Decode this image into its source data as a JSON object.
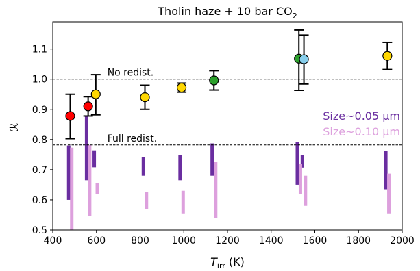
{
  "chart_data": {
    "type": "scatter",
    "title": "Tholin haze + 10 bar CO",
    "title_subscript": "2",
    "xlabel": {
      "main": "T",
      "sub": "irr",
      "unit": " (K)"
    },
    "ylabel": "ℛ",
    "xlim": [
      400,
      2000
    ],
    "ylim": [
      0.5,
      1.19
    ],
    "xticks": [
      400,
      600,
      800,
      1000,
      1200,
      1400,
      1600,
      1800,
      2000
    ],
    "yticks": [
      0.5,
      0.6,
      0.7,
      0.8,
      0.9,
      1.0,
      1.1
    ],
    "ytick_labels": [
      "0.5",
      "0.6",
      "0.7",
      "0.8",
      "0.9",
      "1.0",
      "1.1"
    ],
    "grid": false,
    "reference_lines": [
      {
        "label": "No redist.",
        "y": 1.0,
        "label_x": 650
      },
      {
        "label": "Full redist.",
        "y": 0.782,
        "label_x": 650
      }
    ],
    "points": [
      {
        "x": 480,
        "y": 0.878,
        "yerr_low": 0.075,
        "yerr_high": 0.072,
        "color": "#ff0000"
      },
      {
        "x": 562,
        "y": 0.91,
        "yerr_low": 0.032,
        "yerr_high": 0.032,
        "color": "#ff0000"
      },
      {
        "x": 597,
        "y": 0.95,
        "yerr_low": 0.068,
        "yerr_high": 0.065,
        "color": "#ffd700"
      },
      {
        "x": 822,
        "y": 0.94,
        "yerr_low": 0.04,
        "yerr_high": 0.04,
        "color": "#ffd700"
      },
      {
        "x": 990,
        "y": 0.972,
        "yerr_low": 0.015,
        "yerr_high": 0.015,
        "color": "#ffd700"
      },
      {
        "x": 1138,
        "y": 0.996,
        "yerr_low": 0.032,
        "yerr_high": 0.032,
        "color": "#2ca02c"
      },
      {
        "x": 1527,
        "y": 1.068,
        "yerr_low": 0.105,
        "yerr_high": 0.095,
        "color": "#2ca02c"
      },
      {
        "x": 1550,
        "y": 1.066,
        "yerr_low": 0.082,
        "yerr_high": 0.08,
        "color": "#87ceeb"
      },
      {
        "x": 1932,
        "y": 1.077,
        "yerr_low": 0.045,
        "yerr_high": 0.045,
        "color": "#ffd700"
      }
    ],
    "size_series": [
      {
        "name": "Size~0.05 μm",
        "color": "#6a2ea0",
        "bars": [
          {
            "x": 473,
            "low": 0.6,
            "high": 0.78
          },
          {
            "x": 555,
            "low": 0.665,
            "high": 0.878
          },
          {
            "x": 590,
            "low": 0.708,
            "high": 0.764
          },
          {
            "x": 815,
            "low": 0.68,
            "high": 0.742
          },
          {
            "x": 983,
            "low": 0.665,
            "high": 0.748
          },
          {
            "x": 1130,
            "low": 0.68,
            "high": 0.787
          },
          {
            "x": 1520,
            "low": 0.65,
            "high": 0.792
          },
          {
            "x": 1543,
            "low": 0.707,
            "high": 0.748
          },
          {
            "x": 1925,
            "low": 0.635,
            "high": 0.762
          }
        ]
      },
      {
        "name": "Size~0.10 μm",
        "color": "#dda0dd",
        "bars": [
          {
            "x": 487,
            "low": 0.5,
            "high": 0.773
          },
          {
            "x": 569,
            "low": 0.547,
            "high": 0.782
          },
          {
            "x": 604,
            "low": 0.62,
            "high": 0.655
          },
          {
            "x": 829,
            "low": 0.57,
            "high": 0.625
          },
          {
            "x": 997,
            "low": 0.555,
            "high": 0.63
          },
          {
            "x": 1146,
            "low": 0.54,
            "high": 0.725
          },
          {
            "x": 1534,
            "low": 0.62,
            "high": 0.718
          },
          {
            "x": 1557,
            "low": 0.58,
            "high": 0.68
          },
          {
            "x": 1939,
            "low": 0.555,
            "high": 0.687
          }
        ]
      }
    ],
    "legend": {
      "placement": "center-right"
    }
  }
}
